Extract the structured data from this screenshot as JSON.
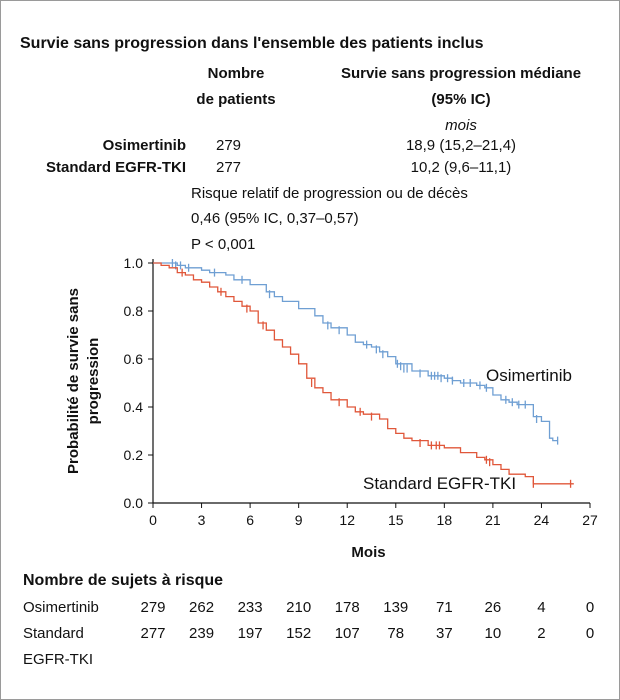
{
  "title": "Survie sans progression dans l'ensemble des patients inclus",
  "header": {
    "n_col": [
      "Nombre",
      "de patients"
    ],
    "median_col": [
      "Survie sans progression médiane",
      "(95% IC)"
    ],
    "unit": "mois"
  },
  "groups": [
    {
      "name": "Osimertinib",
      "n": "279",
      "median": "18,9 (15,2–21,4)"
    },
    {
      "name": "Standard EGFR-TKI",
      "n": "277",
      "median": "10,2 (9,6–11,1)"
    }
  ],
  "hazard": {
    "label": "Risque relatif de progression ou de décès",
    "value": "0,46 (95% IC, 0,37–0,57)",
    "p": "P < 0,001"
  },
  "chart_data": {
    "type": "line",
    "xlabel": "Mois",
    "ylabel": "Probabilité de survie sans progression",
    "xlim": [
      0,
      27
    ],
    "ylim": [
      0,
      1.0
    ],
    "x_ticks": [
      "0",
      "3",
      "6",
      "9",
      "12",
      "15",
      "18",
      "21",
      "24",
      "27"
    ],
    "y_ticks": [
      "0.0",
      "0.2",
      "0.4",
      "0.6",
      "0.8",
      "1.0"
    ],
    "series": [
      {
        "name": "Osimertinib",
        "color": "#6f9fd3",
        "points": [
          [
            0,
            1.0
          ],
          [
            1.5,
            0.99
          ],
          [
            2,
            0.98
          ],
          [
            3,
            0.97
          ],
          [
            3.5,
            0.96
          ],
          [
            4.5,
            0.95
          ],
          [
            5,
            0.93
          ],
          [
            6,
            0.91
          ],
          [
            7,
            0.88
          ],
          [
            7.5,
            0.86
          ],
          [
            8,
            0.84
          ],
          [
            9,
            0.81
          ],
          [
            10,
            0.78
          ],
          [
            10.5,
            0.75
          ],
          [
            11,
            0.73
          ],
          [
            12,
            0.7
          ],
          [
            12.5,
            0.67
          ],
          [
            13,
            0.66
          ],
          [
            13.5,
            0.65
          ],
          [
            14,
            0.63
          ],
          [
            14.5,
            0.61
          ],
          [
            15,
            0.58
          ],
          [
            16,
            0.55
          ],
          [
            17,
            0.53
          ],
          [
            18,
            0.52
          ],
          [
            18.5,
            0.51
          ],
          [
            19,
            0.5
          ],
          [
            20,
            0.49
          ],
          [
            20.5,
            0.48
          ],
          [
            21,
            0.45
          ],
          [
            21.5,
            0.43
          ],
          [
            22,
            0.42
          ],
          [
            22.5,
            0.41
          ],
          [
            23,
            0.41
          ],
          [
            23.5,
            0.36
          ],
          [
            24,
            0.34
          ],
          [
            24.5,
            0.27
          ],
          [
            24.7,
            0.26
          ],
          [
            25,
            0.26
          ]
        ],
        "censored": [
          [
            1.2,
            1.0
          ],
          [
            1.4,
            0.99
          ],
          [
            1.7,
            0.99
          ],
          [
            2.2,
            0.98
          ],
          [
            3.8,
            0.96
          ],
          [
            5.5,
            0.93
          ],
          [
            7.2,
            0.87
          ],
          [
            10.8,
            0.74
          ],
          [
            11.5,
            0.72
          ],
          [
            13.2,
            0.66
          ],
          [
            13.8,
            0.64
          ],
          [
            14.2,
            0.62
          ],
          [
            15.1,
            0.58
          ],
          [
            15.3,
            0.57
          ],
          [
            15.5,
            0.56
          ],
          [
            15.7,
            0.56
          ],
          [
            16.5,
            0.54
          ],
          [
            17.2,
            0.53
          ],
          [
            17.4,
            0.53
          ],
          [
            17.6,
            0.53
          ],
          [
            17.8,
            0.52
          ],
          [
            18.2,
            0.52
          ],
          [
            18.5,
            0.51
          ],
          [
            19.2,
            0.5
          ],
          [
            19.6,
            0.5
          ],
          [
            20.2,
            0.49
          ],
          [
            20.6,
            0.48
          ],
          [
            21.8,
            0.43
          ],
          [
            22.2,
            0.42
          ],
          [
            22.6,
            0.41
          ],
          [
            23.0,
            0.41
          ],
          [
            23.7,
            0.35
          ],
          [
            25.0,
            0.26
          ]
        ]
      },
      {
        "name": "Standard EGFR-TKI",
        "color": "#e0573a",
        "points": [
          [
            0,
            1.0
          ],
          [
            0.5,
            0.99
          ],
          [
            1,
            0.98
          ],
          [
            1.5,
            0.96
          ],
          [
            2,
            0.95
          ],
          [
            2.5,
            0.93
          ],
          [
            3,
            0.92
          ],
          [
            3.5,
            0.9
          ],
          [
            4,
            0.88
          ],
          [
            4.5,
            0.86
          ],
          [
            5,
            0.84
          ],
          [
            5.5,
            0.82
          ],
          [
            6,
            0.8
          ],
          [
            6.5,
            0.75
          ],
          [
            7,
            0.72
          ],
          [
            7.5,
            0.68
          ],
          [
            8,
            0.65
          ],
          [
            8.5,
            0.62
          ],
          [
            9,
            0.58
          ],
          [
            9.5,
            0.52
          ],
          [
            10,
            0.48
          ],
          [
            10.5,
            0.46
          ],
          [
            11,
            0.43
          ],
          [
            12,
            0.4
          ],
          [
            12.5,
            0.38
          ],
          [
            13,
            0.37
          ],
          [
            14,
            0.35
          ],
          [
            14.5,
            0.31
          ],
          [
            15,
            0.29
          ],
          [
            15.5,
            0.27
          ],
          [
            16,
            0.26
          ],
          [
            17,
            0.24
          ],
          [
            18,
            0.23
          ],
          [
            19,
            0.21
          ],
          [
            20,
            0.19
          ],
          [
            20.5,
            0.18
          ],
          [
            21,
            0.16
          ],
          [
            21.5,
            0.14
          ],
          [
            22,
            0.12
          ],
          [
            23,
            0.11
          ],
          [
            23.5,
            0.08
          ],
          [
            26,
            0.08
          ]
        ],
        "censored": [
          [
            1.8,
            0.96
          ],
          [
            4.2,
            0.88
          ],
          [
            5.8,
            0.81
          ],
          [
            6.8,
            0.74
          ],
          [
            9.8,
            0.5
          ],
          [
            11.5,
            0.42
          ],
          [
            12.8,
            0.38
          ],
          [
            13.5,
            0.36
          ],
          [
            16.5,
            0.25
          ],
          [
            17.2,
            0.24
          ],
          [
            17.5,
            0.24
          ],
          [
            17.7,
            0.24
          ],
          [
            20.6,
            0.18
          ],
          [
            20.8,
            0.17
          ],
          [
            23.5,
            0.08
          ],
          [
            25.8,
            0.08
          ]
        ]
      }
    ]
  },
  "risk": {
    "title": "Nombre de sujets à risque",
    "rows": [
      {
        "label": "Osimertinib",
        "values": [
          "279",
          "262",
          "233",
          "210",
          "178",
          "139",
          "71",
          "26",
          "4",
          "0"
        ]
      },
      {
        "label": "Standard",
        "label2": "EGFR-TKI",
        "values": [
          "277",
          "239",
          "197",
          "152",
          "107",
          "78",
          "37",
          "10",
          "2",
          "0"
        ]
      }
    ]
  }
}
